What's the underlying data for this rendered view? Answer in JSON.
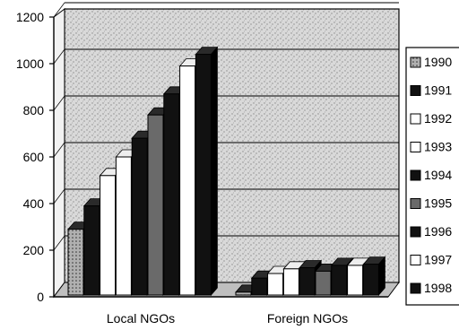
{
  "chart_data": {
    "type": "bar",
    "categories": [
      "Local NGOs",
      "Foreign NGOs"
    ],
    "series": [
      {
        "name": "1990",
        "values": [
          290,
          20
        ]
      },
      {
        "name": "1991",
        "values": [
          390,
          80
        ]
      },
      {
        "name": "1992",
        "values": [
          520,
          100
        ]
      },
      {
        "name": "1993",
        "values": [
          600,
          120
        ]
      },
      {
        "name": "1994",
        "values": [
          680,
          125
        ]
      },
      {
        "name": "1995",
        "values": [
          780,
          110
        ]
      },
      {
        "name": "1996",
        "values": [
          870,
          135
        ]
      },
      {
        "name": "1997",
        "values": [
          990,
          135
        ]
      },
      {
        "name": "1998",
        "values": [
          1040,
          140
        ]
      }
    ],
    "yticks": [
      "0",
      "200",
      "400",
      "600",
      "800",
      "1000",
      "1200"
    ],
    "ylim": [
      0,
      1200
    ],
    "grid": true,
    "legend_position": "right",
    "colors": {
      "1990": "#9a9a9a",
      "1991": "#111111",
      "1992": "#ffffff",
      "1993": "#ffffff",
      "1994": "#111111",
      "1995": "#6a6a6a",
      "1996": "#111111",
      "1997": "#ffffff",
      "1998": "#111111"
    }
  }
}
